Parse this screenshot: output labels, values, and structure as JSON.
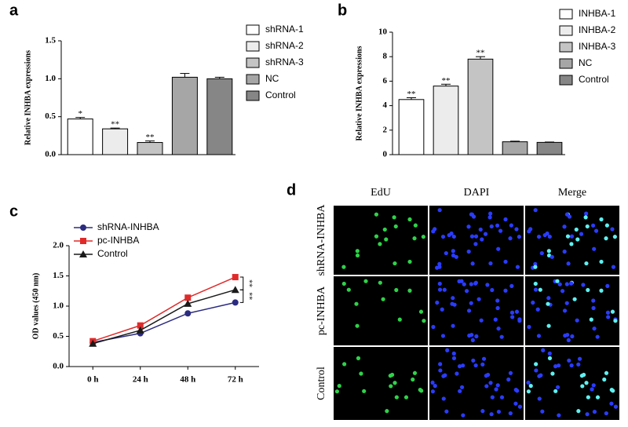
{
  "chart_data": [
    {
      "type": "bar",
      "panel": "a",
      "y_label": "Relative INHBA expressions",
      "categories": [
        "shRNA-1",
        "shRNA-2",
        "shRNA-3",
        "NC",
        "Control"
      ],
      "values": [
        0.47,
        0.34,
        0.16,
        1.02,
        1.0
      ],
      "errors": [
        0.02,
        0.01,
        0.02,
        0.05,
        0.02
      ],
      "annotations": [
        "*",
        "**",
        "**",
        null,
        null
      ],
      "colors": [
        "#ffffff",
        "#ececec",
        "#c4c4c4",
        "#a6a6a6",
        "#868686"
      ],
      "ylim": [
        0,
        1.5
      ],
      "yticks": [
        {
          "value": 0,
          "label": "0.0"
        },
        0.5,
        {
          "value": 1,
          "label": "1.0"
        },
        1.5
      ],
      "legend": "right"
    },
    {
      "type": "bar",
      "panel": "b",
      "y_label": "Relative INHBA expressions",
      "categories": [
        "INHBA-1",
        "INHBA-2",
        "INHBA-3",
        "NC",
        "Control"
      ],
      "values": [
        4.5,
        5.6,
        7.8,
        1.05,
        1.0
      ],
      "errors": [
        0.15,
        0.15,
        0.2,
        0.05,
        0.03
      ],
      "annotations": [
        "**",
        "**",
        "**",
        null,
        null
      ],
      "colors": [
        "#ffffff",
        "#ececec",
        "#c4c4c4",
        "#a6a6a6",
        "#868686"
      ],
      "ylim": [
        0,
        10
      ],
      "yticks": [
        0,
        2,
        4,
        6,
        8,
        10
      ],
      "legend": "right"
    },
    {
      "type": "line",
      "panel": "c",
      "y_label": "OD values (450 nm)",
      "categories": [
        "0 h",
        "24 h",
        "48 h",
        "72 h"
      ],
      "series": [
        {
          "name": "shRNA-INHBA",
          "color": "#2b2b80",
          "marker": "circle",
          "values": [
            0.4,
            0.55,
            0.88,
            1.06
          ]
        },
        {
          "name": "pc-INHBA",
          "color": "#e02a2a",
          "marker": "square",
          "values": [
            0.42,
            0.68,
            1.14,
            1.48
          ]
        },
        {
          "name": "Control",
          "color": "#1a1a1a",
          "marker": "triangle",
          "values": [
            0.38,
            0.6,
            1.04,
            1.27
          ]
        }
      ],
      "annotations": [
        "**",
        "**"
      ],
      "ylim": [
        0,
        2
      ],
      "yticks": [
        {
          "value": 0,
          "label": "0.0"
        },
        0.5,
        {
          "value": 1,
          "label": "1.0"
        },
        1.5,
        {
          "value": 2,
          "label": "2.0"
        }
      ],
      "legend": "top-left"
    }
  ],
  "images": {
    "panel": "d",
    "columns": [
      "EdU",
      "DAPI",
      "Merge"
    ],
    "rows": [
      "shRNA-INHBA",
      "pc-INHBA",
      "Control"
    ]
  }
}
